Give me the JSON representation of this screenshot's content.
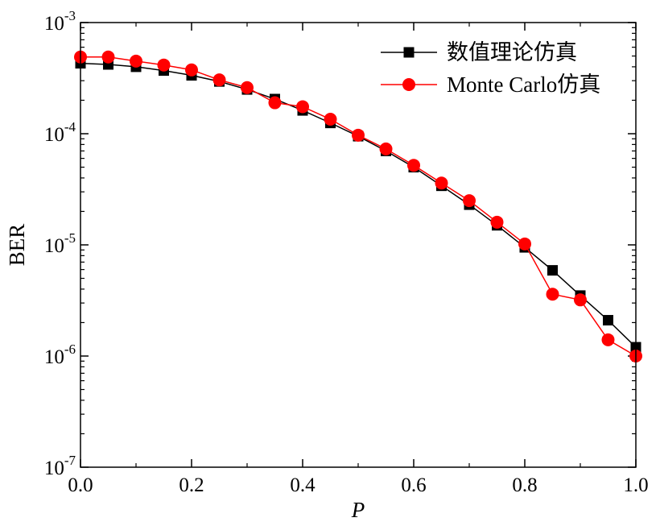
{
  "chart_data": {
    "type": "line",
    "title": "",
    "xlabel": "P",
    "ylabel": "BER",
    "xlim": [
      0.0,
      1.0
    ],
    "ylim": [
      1e-07,
      0.001
    ],
    "yscale": "log",
    "grid": false,
    "legend_position": "top-right",
    "x_ticks": [
      0.0,
      0.2,
      0.4,
      0.6,
      0.8,
      1.0
    ],
    "x_tick_labels": [
      "0.0",
      "0.2",
      "0.4",
      "0.6",
      "0.8",
      "1.0"
    ],
    "y_tick_labels": [
      {
        "base": "10",
        "exp": "-3"
      },
      {
        "base": "10",
        "exp": "-4"
      },
      {
        "base": "10",
        "exp": "-5"
      },
      {
        "base": "10",
        "exp": "-6"
      },
      {
        "base": "10",
        "exp": "-7"
      }
    ],
    "y_ticks": [
      0.001,
      0.0001,
      1e-05,
      1e-06,
      1e-07
    ],
    "x": [
      0.0,
      0.05,
      0.1,
      0.15,
      0.2,
      0.25,
      0.3,
      0.35,
      0.4,
      0.45,
      0.5,
      0.55,
      0.6,
      0.65,
      0.7,
      0.75,
      0.8,
      0.85,
      0.9,
      0.95,
      1.0
    ],
    "series": [
      {
        "name": "数值理论仿真",
        "color": "#000000",
        "marker": "square",
        "values": [
          0.00043,
          0.00042,
          0.0004,
          0.00037,
          0.000335,
          0.000295,
          0.00025,
          0.000205,
          0.000162,
          0.000125,
          9.5e-05,
          7e-05,
          5e-05,
          3.4e-05,
          2.3e-05,
          1.5e-05,
          9.5e-06,
          5.9e-06,
          3.5e-06,
          2.1e-06,
          1.2e-06
        ]
      },
      {
        "name": "Monte Carlo仿真",
        "color": "#ff0000",
        "marker": "circle",
        "values": [
          0.00049,
          0.00049,
          0.00045,
          0.000415,
          0.000375,
          0.000305,
          0.00026,
          0.00019,
          0.000175,
          0.000135,
          9.7e-05,
          7.3e-05,
          5.2e-05,
          3.6e-05,
          2.5e-05,
          1.6e-05,
          1.02e-05,
          3.6e-06,
          3.2e-06,
          1.4e-06,
          1e-06
        ]
      }
    ]
  }
}
